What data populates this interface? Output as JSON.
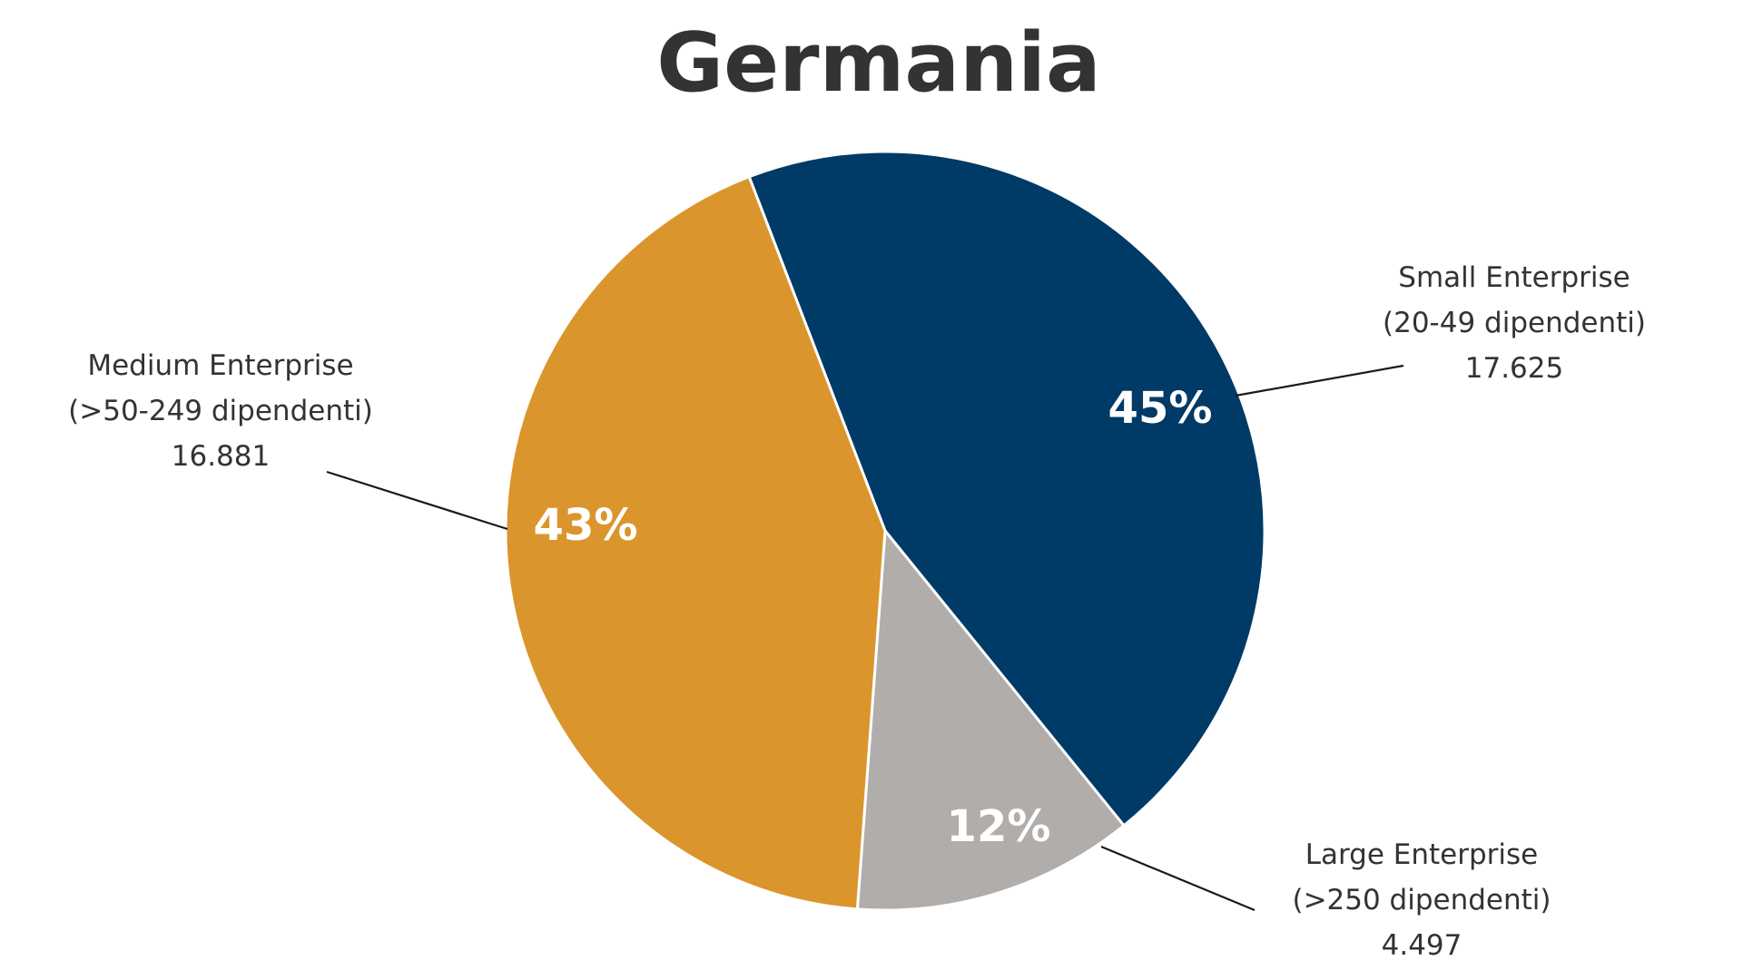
{
  "chart_data": {
    "type": "pie",
    "title": "Germania",
    "slices": [
      {
        "id": "small",
        "name": "Small Enterprise",
        "detail": "(20-49 dipendenti)",
        "count": "17.625",
        "value": 45,
        "percent_label": "45%",
        "color": "#003a66"
      },
      {
        "id": "large",
        "name": "Large Enterprise",
        "detail": "(>250 dipendenti)",
        "count": "4.497",
        "value": 12,
        "percent_label": "12%",
        "color": "#b0adab"
      },
      {
        "id": "medium",
        "name": "Medium Enterprise",
        "detail": "(>50-249 dipendenti)",
        "count": "16.881",
        "value": 43,
        "percent_label": "43%",
        "color": "#da952c"
      }
    ]
  }
}
